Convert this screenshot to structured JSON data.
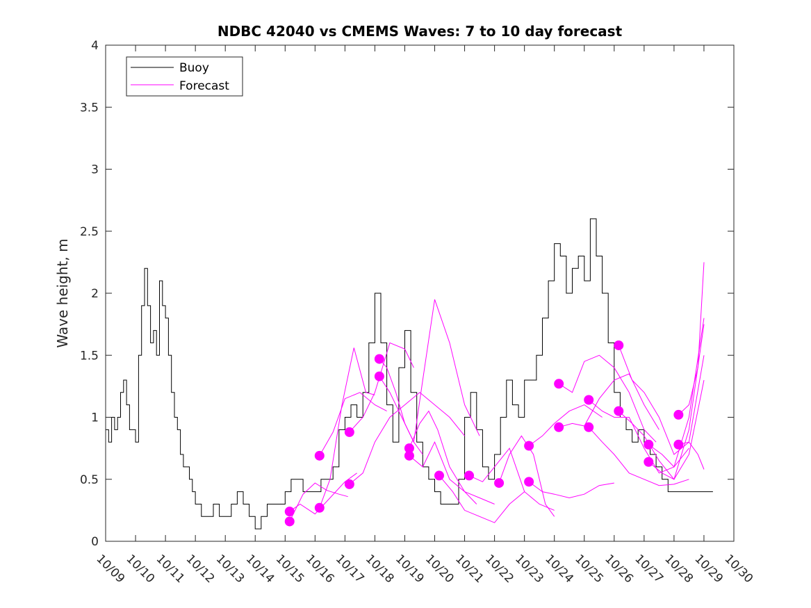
{
  "chart_data": {
    "type": "line",
    "title": "NDBC 42040 vs CMEMS Waves: 7 to 10 day forecast",
    "xlabel": "",
    "ylabel": "Wave height, m",
    "xlim": [
      0,
      21
    ],
    "ylim": [
      0,
      4
    ],
    "grid": false,
    "legend_position": "top-left",
    "x_tick_labels": [
      "10/09",
      "10/10",
      "10/11",
      "10/12",
      "10/13",
      "10/14",
      "10/15",
      "10/16",
      "10/17",
      "10/18",
      "10/19",
      "10/20",
      "10/21",
      "10/22",
      "10/23",
      "10/24",
      "10/25",
      "10/26",
      "10/27",
      "10/28",
      "10/29",
      "10/30"
    ],
    "y_ticks": [
      0,
      0.5,
      1,
      1.5,
      2,
      2.5,
      3,
      3.5,
      4
    ],
    "y_tick_labels": [
      "0",
      "0.5",
      "1",
      "1.5",
      "2",
      "2.5",
      "3",
      "3.5",
      "4"
    ],
    "colors": {
      "buoy": "#000000",
      "forecast": "#ff00ff",
      "axis": "#262626"
    },
    "series": [
      {
        "name": "Buoy",
        "color": "#000000",
        "x": [
          0,
          0.1,
          0.2,
          0.3,
          0.4,
          0.5,
          0.6,
          0.7,
          0.8,
          0.9,
          1.0,
          1.1,
          1.2,
          1.3,
          1.4,
          1.5,
          1.6,
          1.7,
          1.8,
          1.9,
          2.0,
          2.1,
          2.2,
          2.3,
          2.4,
          2.5,
          2.6,
          2.7,
          2.8,
          2.9,
          3.0,
          3.2,
          3.4,
          3.6,
          3.8,
          4.0,
          4.2,
          4.4,
          4.6,
          4.8,
          5.0,
          5.2,
          5.4,
          5.6,
          5.8,
          6.0,
          6.2,
          6.4,
          6.6,
          6.8,
          7.0,
          7.2,
          7.4,
          7.6,
          7.8,
          8.0,
          8.2,
          8.4,
          8.6,
          8.8,
          9.0,
          9.2,
          9.4,
          9.6,
          9.8,
          10.0,
          10.2,
          10.4,
          10.6,
          10.8,
          11.0,
          11.2,
          11.4,
          11.6,
          11.8,
          12.0,
          12.2,
          12.4,
          12.6,
          12.8,
          13.0,
          13.2,
          13.4,
          13.6,
          13.8,
          14.0,
          14.2,
          14.4,
          14.6,
          14.8,
          15.0,
          15.2,
          15.4,
          15.6,
          15.8,
          16.0,
          16.2,
          16.4,
          16.6,
          16.8,
          17.0,
          17.2,
          17.4,
          17.6,
          17.8,
          18.0,
          18.2,
          18.4,
          18.6,
          18.8,
          19.0,
          19.2,
          19.4,
          19.6,
          19.8,
          20.0,
          20.3
        ],
        "values": [
          0.9,
          0.8,
          1.0,
          0.9,
          1.0,
          1.2,
          1.3,
          1.1,
          0.9,
          0.9,
          0.8,
          1.5,
          1.9,
          2.2,
          1.9,
          1.6,
          1.7,
          1.5,
          2.1,
          1.9,
          1.8,
          1.5,
          1.2,
          1.0,
          0.9,
          0.7,
          0.6,
          0.6,
          0.5,
          0.4,
          0.3,
          0.2,
          0.2,
          0.3,
          0.2,
          0.2,
          0.3,
          0.4,
          0.3,
          0.2,
          0.1,
          0.2,
          0.3,
          0.3,
          0.3,
          0.4,
          0.5,
          0.5,
          0.4,
          0.4,
          0.4,
          0.5,
          0.5,
          0.6,
          0.9,
          1.0,
          1.1,
          1.0,
          1.2,
          1.6,
          2.0,
          1.6,
          1.1,
          0.8,
          1.4,
          1.7,
          1.2,
          0.8,
          0.6,
          0.5,
          0.4,
          0.3,
          0.3,
          0.3,
          0.5,
          1.0,
          1.2,
          0.9,
          0.6,
          0.5,
          0.7,
          1.0,
          1.3,
          1.1,
          1.0,
          1.3,
          1.3,
          1.5,
          1.8,
          2.1,
          2.4,
          2.3,
          2.0,
          2.2,
          2.3,
          2.1,
          2.6,
          2.3,
          2.0,
          1.6,
          1.2,
          1.0,
          0.9,
          0.8,
          0.9,
          0.8,
          0.7,
          0.6,
          0.5,
          0.4,
          0.4,
          0.4,
          0.4,
          0.4,
          0.4,
          0.4,
          0.4
        ]
      },
      {
        "name": "Forecast",
        "color": "#ff00ff",
        "x": [
          6.15,
          6.6,
          7.0,
          7.4,
          7.8,
          8.1
        ],
        "values": [
          0.16,
          0.38,
          0.47,
          0.41,
          0.38,
          0.36
        ]
      },
      {
        "name": "Forecast",
        "color": "#ff00ff",
        "x": [
          6.15,
          6.5,
          7.0,
          7.5,
          8.0,
          8.4
        ],
        "values": [
          0.24,
          0.3,
          0.22,
          0.35,
          0.48,
          0.55
        ]
      },
      {
        "name": "Forecast",
        "color": "#ff00ff",
        "x": [
          7.15,
          7.5,
          7.9,
          8.3,
          8.7,
          9.0
        ],
        "values": [
          0.27,
          0.5,
          1.1,
          1.56,
          1.2,
          1.18
        ]
      },
      {
        "name": "Forecast",
        "color": "#ff00ff",
        "x": [
          7.15,
          7.6,
          8.0,
          8.5,
          9.0,
          9.4
        ],
        "values": [
          0.69,
          0.88,
          1.15,
          1.2,
          1.1,
          1.05
        ]
      },
      {
        "name": "Forecast",
        "color": "#ff00ff",
        "x": [
          8.15,
          8.6,
          9.0,
          9.5,
          10.0,
          10.3
        ],
        "values": [
          0.88,
          1.0,
          1.2,
          1.6,
          1.55,
          1.4
        ]
      },
      {
        "name": "Forecast",
        "color": "#ff00ff",
        "x": [
          8.15,
          8.6,
          9.0,
          9.5,
          10.0,
          10.5,
          11.0,
          11.5,
          12.0
        ],
        "values": [
          0.46,
          0.55,
          0.8,
          1.0,
          1.1,
          1.2,
          1.1,
          1.0,
          0.85
        ]
      },
      {
        "name": "Forecast",
        "color": "#ff00ff",
        "x": [
          9.15,
          9.4,
          9.7,
          10.0,
          10.3,
          10.6
        ],
        "values": [
          1.47,
          1.4,
          1.2,
          0.95,
          0.8,
          0.7
        ]
      },
      {
        "name": "Forecast",
        "color": "#ff00ff",
        "x": [
          9.15,
          9.5,
          9.9,
          10.3,
          10.6,
          11.0,
          11.5,
          12.0,
          12.5
        ],
        "values": [
          1.33,
          1.2,
          1.0,
          0.8,
          1.3,
          1.95,
          1.6,
          1.1,
          0.85
        ]
      },
      {
        "name": "Forecast",
        "color": "#ff00ff",
        "x": [
          10.15,
          10.5,
          10.8,
          11.1,
          11.5,
          12.0,
          12.4
        ],
        "values": [
          0.75,
          0.95,
          1.05,
          0.9,
          0.6,
          0.4,
          0.3
        ]
      },
      {
        "name": "Forecast",
        "color": "#ff00ff",
        "x": [
          10.15,
          10.6,
          11.0,
          11.5,
          12.0,
          12.5,
          13.0
        ],
        "values": [
          0.69,
          0.6,
          0.8,
          0.5,
          0.4,
          0.35,
          0.3
        ]
      },
      {
        "name": "Forecast",
        "color": "#ff00ff",
        "x": [
          11.15,
          11.6,
          12.0,
          12.5,
          13.0,
          13.5,
          14.0
        ],
        "values": [
          0.53,
          0.4,
          0.25,
          0.2,
          0.15,
          0.3,
          0.4
        ]
      },
      {
        "name": "Forecast",
        "color": "#ff00ff",
        "x": [
          12.15,
          12.6,
          13.0,
          13.5,
          14.0,
          14.5,
          15.0
        ],
        "values": [
          0.53,
          0.48,
          0.6,
          0.75,
          0.4,
          0.3,
          0.25
        ]
      },
      {
        "name": "Forecast",
        "color": "#ff00ff",
        "x": [
          13.15,
          13.5,
          13.9,
          14.3,
          14.7,
          15.0
        ],
        "values": [
          0.47,
          0.7,
          0.85,
          0.7,
          0.3,
          0.2
        ]
      },
      {
        "name": "Forecast",
        "color": "#ff00ff",
        "x": [
          14.15,
          14.6,
          15.0,
          15.5,
          16.0,
          16.5,
          17.0
        ],
        "values": [
          0.48,
          0.4,
          0.38,
          0.35,
          0.38,
          0.45,
          0.47
        ]
      },
      {
        "name": "Forecast",
        "color": "#ff00ff",
        "x": [
          14.15,
          14.6,
          15.0,
          15.5,
          16.0,
          16.6
        ],
        "values": [
          0.77,
          0.85,
          0.95,
          1.05,
          1.1,
          1.0
        ]
      },
      {
        "name": "Forecast",
        "color": "#ff00ff",
        "x": [
          15.15,
          15.6,
          16.0,
          16.5,
          17.0,
          17.5,
          18.0,
          18.4
        ],
        "values": [
          1.27,
          1.2,
          1.45,
          1.5,
          1.4,
          1.2,
          0.9,
          0.8
        ]
      },
      {
        "name": "Forecast",
        "color": "#ff00ff",
        "x": [
          15.15,
          15.6,
          16.0,
          16.5,
          17.0,
          17.5,
          18.0,
          18.5
        ],
        "values": [
          0.92,
          0.95,
          0.93,
          1.15,
          1.3,
          1.35,
          1.1,
          0.9
        ]
      },
      {
        "name": "Forecast",
        "color": "#ff00ff",
        "x": [
          16.15,
          16.6,
          17.0,
          17.5,
          18.0,
          18.5,
          19.0,
          19.5
        ],
        "values": [
          1.14,
          1.05,
          1.0,
          1.0,
          0.75,
          0.55,
          0.6,
          0.75
        ]
      },
      {
        "name": "Forecast",
        "color": "#ff00ff",
        "x": [
          16.15,
          16.6,
          17.0,
          17.5,
          18.0,
          18.5,
          19.0,
          19.5
        ],
        "values": [
          0.92,
          0.8,
          0.7,
          0.55,
          0.5,
          0.45,
          0.46,
          0.5
        ]
      },
      {
        "name": "Forecast",
        "color": "#ff00ff",
        "x": [
          17.15,
          17.6,
          18.0,
          18.5,
          19.0,
          19.5,
          20.0
        ],
        "values": [
          1.58,
          1.3,
          1.2,
          1.0,
          0.7,
          0.8,
          1.5
        ]
      },
      {
        "name": "Forecast",
        "color": "#ff00ff",
        "x": [
          17.15,
          17.6,
          18.0,
          18.5,
          19.0,
          19.5,
          20.0
        ],
        "values": [
          1.05,
          0.95,
          0.85,
          0.65,
          0.5,
          0.9,
          1.75
        ]
      },
      {
        "name": "Forecast",
        "color": "#ff00ff",
        "x": [
          18.15,
          18.6,
          19.0,
          19.5,
          20.0
        ],
        "values": [
          0.78,
          0.7,
          0.6,
          1.0,
          1.8
        ]
      },
      {
        "name": "Forecast",
        "color": "#ff00ff",
        "x": [
          18.15,
          18.6,
          19.0,
          19.5,
          20.0
        ],
        "values": [
          0.64,
          0.55,
          0.5,
          0.7,
          1.3
        ]
      },
      {
        "name": "Forecast",
        "color": "#ff00ff",
        "x": [
          19.15,
          19.5,
          19.8,
          20.0
        ],
        "values": [
          1.02,
          1.1,
          1.4,
          2.25
        ]
      },
      {
        "name": "Forecast",
        "color": "#ff00ff",
        "x": [
          19.15,
          19.5,
          19.8,
          20.0
        ],
        "values": [
          0.78,
          0.8,
          0.7,
          0.58
        ]
      }
    ],
    "legend": [
      {
        "label": "Buoy",
        "color": "#000000"
      },
      {
        "label": "Forecast",
        "color": "#ff00ff"
      }
    ]
  }
}
